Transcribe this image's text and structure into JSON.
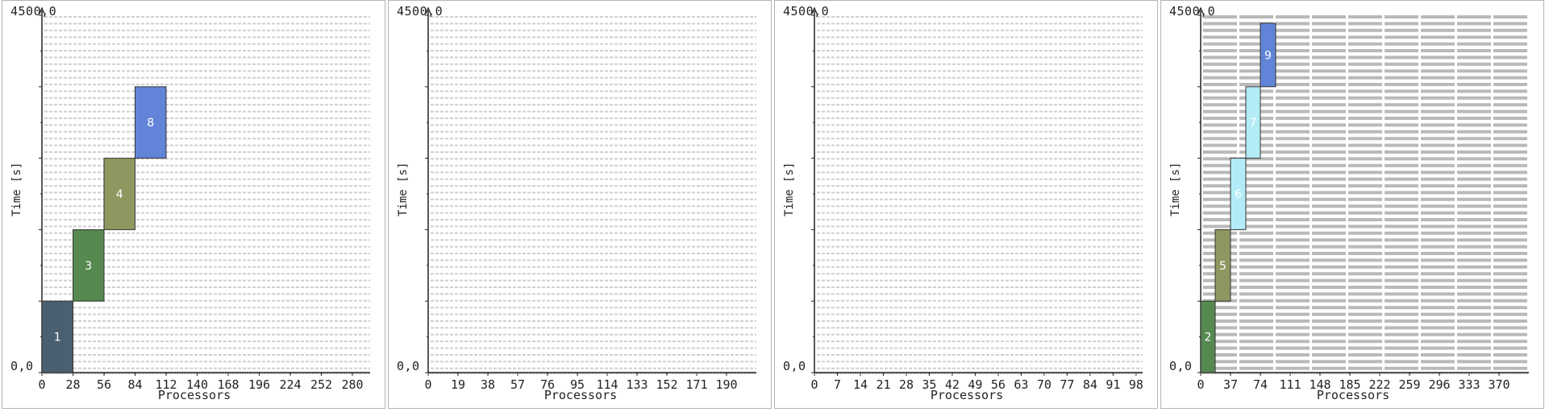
{
  "chart_data": [
    {
      "type": "bar",
      "ymax_label": "4500,0",
      "ymin_label": "0,0",
      "ylabel": "Time [s]",
      "xlabel": "Processors",
      "ylim": [
        0,
        4500
      ],
      "xlim": [
        0,
        296
      ],
      "x_ticks": [
        "0",
        "28",
        "56",
        "84",
        "112",
        "140",
        "168",
        "196",
        "224",
        "252",
        "280"
      ],
      "x_tick_values": [
        0,
        28,
        56,
        84,
        112,
        140,
        168,
        196,
        224,
        252,
        280
      ],
      "grid_style": "light",
      "jobs": [
        {
          "label": "1",
          "x0": 0,
          "x1": 28,
          "y0": 0,
          "y1": 900,
          "color": "#4a6070"
        },
        {
          "label": "3",
          "x0": 28,
          "x1": 56,
          "y0": 900,
          "y1": 1800,
          "color": "#55894f"
        },
        {
          "label": "4",
          "x0": 56,
          "x1": 84,
          "y0": 1800,
          "y1": 2700,
          "color": "#8f9660"
        },
        {
          "label": "8",
          "x0": 84,
          "x1": 112,
          "y0": 2700,
          "y1": 3600,
          "color": "#6184d8"
        }
      ]
    },
    {
      "type": "bar",
      "ymax_label": "4500,0",
      "ymin_label": "0,0",
      "ylabel": "Time [s]",
      "xlabel": "Processors",
      "ylim": [
        0,
        4500
      ],
      "xlim": [
        0,
        209
      ],
      "x_ticks": [
        "0",
        "19",
        "38",
        "57",
        "76",
        "95",
        "114",
        "133",
        "152",
        "171",
        "190"
      ],
      "x_tick_values": [
        0,
        19,
        38,
        57,
        76,
        95,
        114,
        133,
        152,
        171,
        190
      ],
      "grid_style": "light",
      "jobs": []
    },
    {
      "type": "bar",
      "ymax_label": "4500,0",
      "ymin_label": "0,0",
      "ylabel": "Time [s]",
      "xlabel": "Processors",
      "ylim": [
        0,
        4500
      ],
      "xlim": [
        0,
        100
      ],
      "x_ticks": [
        "0",
        "7",
        "14",
        "21",
        "28",
        "35",
        "42",
        "49",
        "56",
        "63",
        "70",
        "77",
        "84",
        "91",
        "98"
      ],
      "x_tick_values": [
        0,
        7,
        14,
        21,
        28,
        35,
        42,
        49,
        56,
        63,
        70,
        77,
        84,
        91,
        98
      ],
      "grid_style": "light",
      "jobs": []
    },
    {
      "type": "bar",
      "ymax_label": "4500,0",
      "ymin_label": "0,0",
      "ylabel": "Time [s]",
      "xlabel": "Processors",
      "ylim": [
        0,
        4500
      ],
      "xlim": [
        0,
        407
      ],
      "x_ticks": [
        "0",
        "37",
        "74",
        "111",
        "148",
        "185",
        "222",
        "259",
        "296",
        "333",
        "370"
      ],
      "x_tick_values": [
        0,
        37,
        74,
        111,
        148,
        185,
        222,
        259,
        296,
        333,
        370
      ],
      "grid_style": "heavy",
      "jobs": [
        {
          "label": "2",
          "x0": 0,
          "x1": 18,
          "y0": 0,
          "y1": 900,
          "color": "#55894f"
        },
        {
          "label": "5",
          "x0": 18,
          "x1": 37,
          "y0": 900,
          "y1": 1800,
          "color": "#8f9660"
        },
        {
          "label": "6",
          "x0": 37,
          "x1": 56,
          "y0": 1800,
          "y1": 2700,
          "color": "#b3ecf6"
        },
        {
          "label": "7",
          "x0": 56,
          "x1": 74,
          "y0": 2700,
          "y1": 3600,
          "color": "#b3ecf6"
        },
        {
          "label": "9",
          "x0": 74,
          "x1": 93,
          "y0": 3600,
          "y1": 4400,
          "color": "#6184d8"
        }
      ]
    }
  ]
}
